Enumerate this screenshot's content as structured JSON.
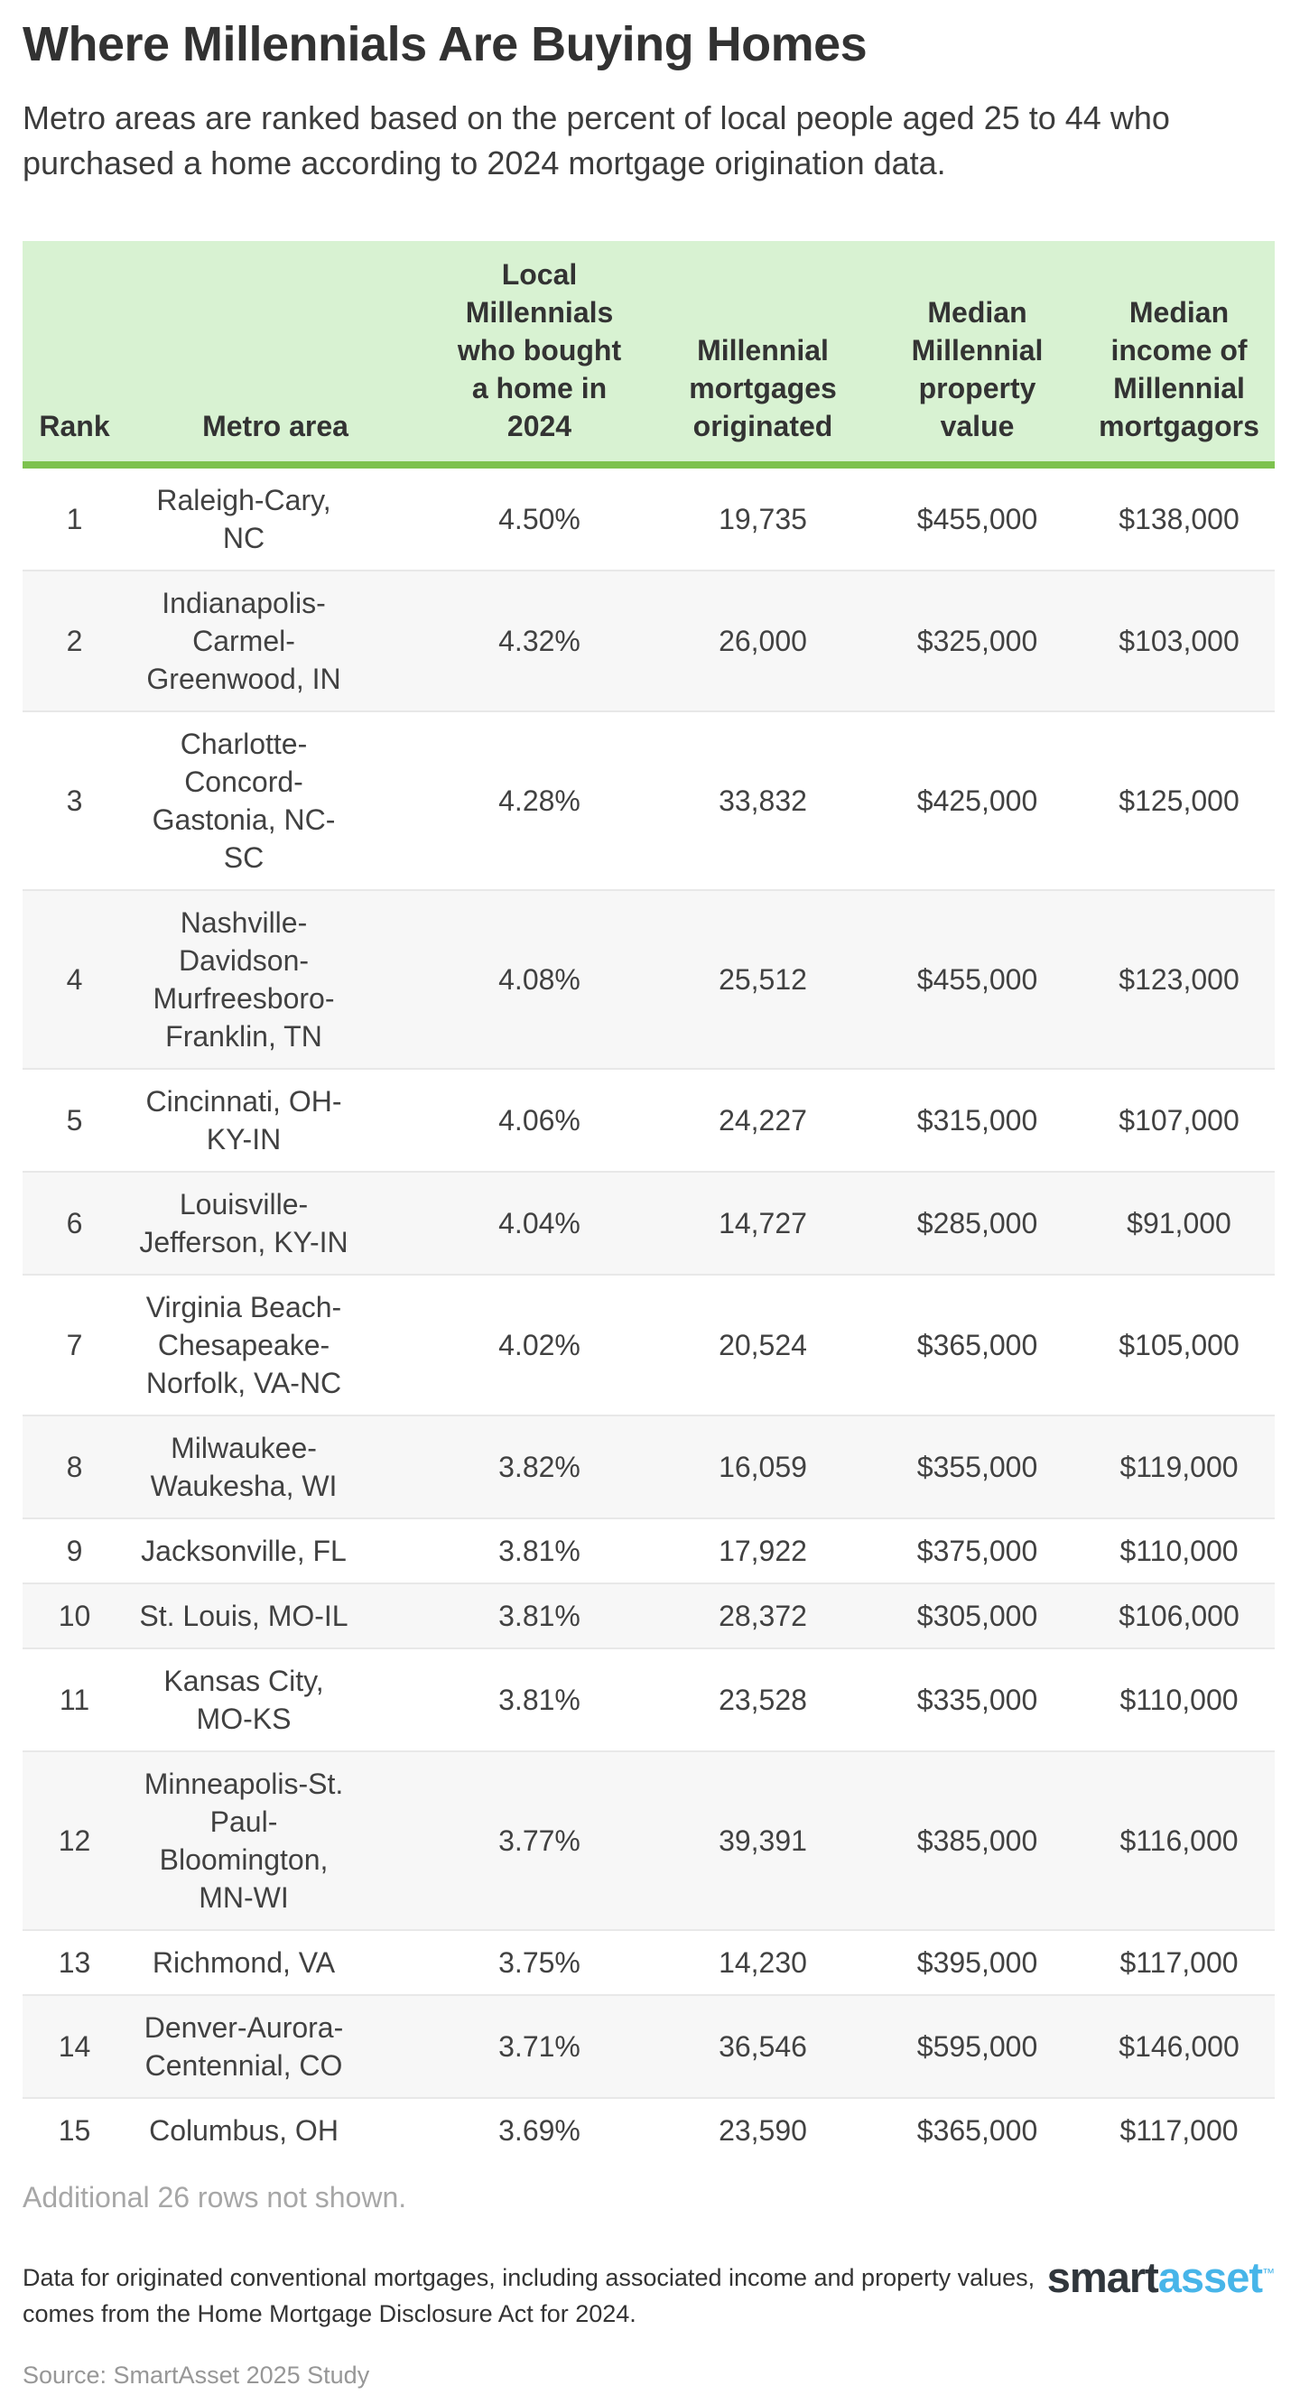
{
  "title": "Where Millennials Are Buying Homes",
  "subtitle": "Metro areas are ranked based on the percent of local people aged 25 to 44 who purchased a home according to 2024 mortgage origination data.",
  "rows_note": "Additional 26 rows not shown.",
  "footnote": "Data for originated conventional mortgages, including associated income and property values, comes from the Home Mortgage Disclosure Act for 2024.",
  "source": "Source: SmartAsset 2025 Study",
  "logo": {
    "smart": "smart",
    "asset": "asset",
    "tm": "™"
  },
  "colors": {
    "header_bg": "#d8f2d2",
    "header_border_green": "#7dc24e",
    "row_stripe_gray": "#f7f7f7",
    "row_divider": "#e8e8e8",
    "note_gray": "#a7a7a7",
    "source_gray": "#979797",
    "logo_dark": "#30363c",
    "logo_blue": "#47b5e9"
  },
  "chart_data": {
    "type": "table",
    "title": "Where Millennials Are Buying Homes",
    "columns": [
      "Rank",
      "Metro area",
      "Local Millennials who bought a home in 2024",
      "Millennial mortgages originated",
      "Median Millennial property value",
      "Median income of Millennial mortgagors"
    ],
    "rows": [
      [
        "1",
        "Raleigh-Cary, NC",
        "4.50%",
        "19,735",
        "$455,000",
        "$138,000"
      ],
      [
        "2",
        "Indianapolis-Carmel-Greenwood, IN",
        "4.32%",
        "26,000",
        "$325,000",
        "$103,000"
      ],
      [
        "3",
        "Charlotte-Concord-Gastonia, NC-SC",
        "4.28%",
        "33,832",
        "$425,000",
        "$125,000"
      ],
      [
        "4",
        "Nashville-Davidson-Murfreesboro-Franklin, TN",
        "4.08%",
        "25,512",
        "$455,000",
        "$123,000"
      ],
      [
        "5",
        "Cincinnati, OH-KY-IN",
        "4.06%",
        "24,227",
        "$315,000",
        "$107,000"
      ],
      [
        "6",
        "Louisville-Jefferson, KY-IN",
        "4.04%",
        "14,727",
        "$285,000",
        "$91,000"
      ],
      [
        "7",
        "Virginia Beach-Chesapeake-Norfolk, VA-NC",
        "4.02%",
        "20,524",
        "$365,000",
        "$105,000"
      ],
      [
        "8",
        "Milwaukee-Waukesha, WI",
        "3.82%",
        "16,059",
        "$355,000",
        "$119,000"
      ],
      [
        "9",
        "Jacksonville, FL",
        "3.81%",
        "17,922",
        "$375,000",
        "$110,000"
      ],
      [
        "10",
        "St. Louis, MO-IL",
        "3.81%",
        "28,372",
        "$305,000",
        "$106,000"
      ],
      [
        "11",
        "Kansas City, MO-KS",
        "3.81%",
        "23,528",
        "$335,000",
        "$110,000"
      ],
      [
        "12",
        "Minneapolis-St. Paul-Bloomington, MN-WI",
        "3.77%",
        "39,391",
        "$385,000",
        "$116,000"
      ],
      [
        "13",
        "Richmond, VA",
        "3.75%",
        "14,230",
        "$395,000",
        "$117,000"
      ],
      [
        "14",
        "Denver-Aurora-Centennial, CO",
        "3.71%",
        "36,546",
        "$595,000",
        "$146,000"
      ],
      [
        "15",
        "Columbus, OH",
        "3.69%",
        "23,590",
        "$365,000",
        "$117,000"
      ]
    ]
  }
}
